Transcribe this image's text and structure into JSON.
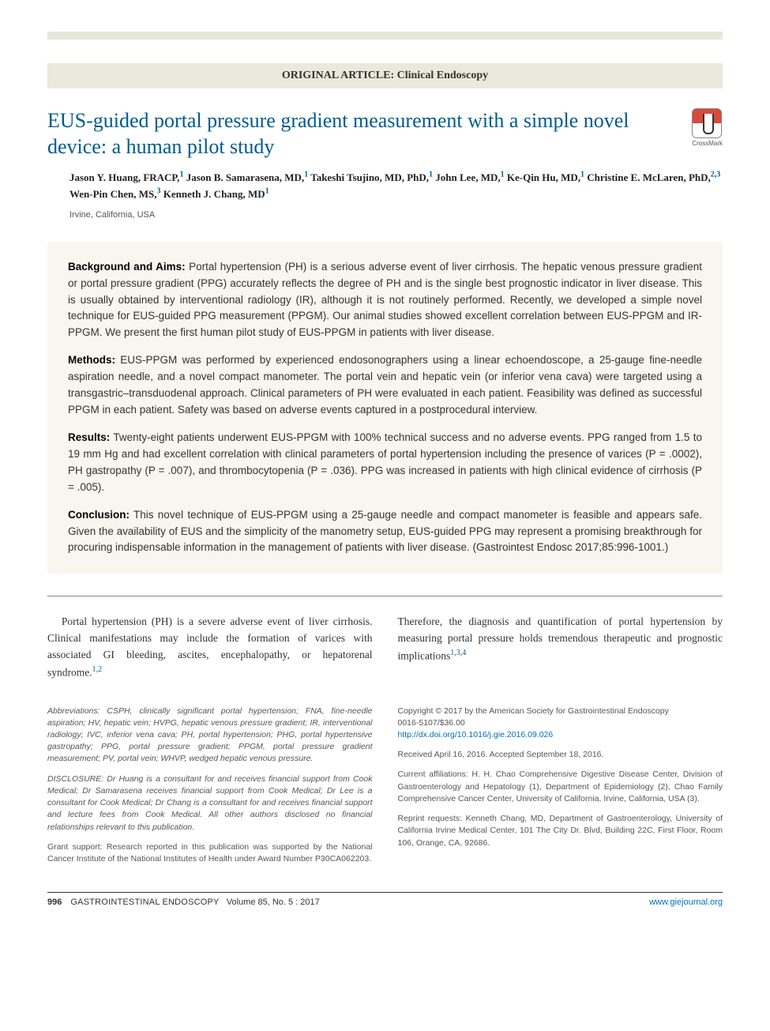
{
  "colors": {
    "accent": "#005b8e",
    "link": "#0071b8",
    "category_bg": "#ebe9dc",
    "abstract_bg": "#f7f6ef",
    "text": "#333333",
    "footnote_text": "#555555"
  },
  "header": {
    "category": "ORIGINAL ARTICLE: Clinical Endoscopy",
    "title": "EUS-guided portal pressure gradient measurement with a simple novel device: a human pilot study",
    "crossmark_label": "CrossMark"
  },
  "authors_html": "Jason Y. Huang, FRACP,<sup>1</sup> Jason B. Samarasena, MD,<sup>1</sup> Takeshi Tsujino, MD, PhD,<sup>1</sup> John Lee, MD,<sup>1</sup> Ke-Qin Hu, MD,<sup>1</sup> Christine E. McLaren, PhD,<sup>2,3</sup> Wen-Pin Chen, MS,<sup>3</sup> Kenneth J. Chang, MD<sup>1</sup>",
  "location": "Irvine, California, USA",
  "abstract": {
    "background": {
      "label": "Background and Aims:",
      "text": "Portal hypertension (PH) is a serious adverse event of liver cirrhosis. The hepatic venous pressure gradient or portal pressure gradient (PPG) accurately reflects the degree of PH and is the single best prognostic indicator in liver disease. This is usually obtained by interventional radiology (IR), although it is not routinely performed. Recently, we developed a simple novel technique for EUS-guided PPG measurement (PPGM). Our animal studies showed excellent correlation between EUS-PPGM and IR-PPGM. We present the first human pilot study of EUS-PPGM in patients with liver disease."
    },
    "methods": {
      "label": "Methods:",
      "text": "EUS-PPGM was performed by experienced endosonographers using a linear echoendoscope, a 25-gauge fine-needle aspiration needle, and a novel compact manometer. The portal vein and hepatic vein (or inferior vena cava) were targeted using a transgastric–transduodenal approach. Clinical parameters of PH were evaluated in each patient. Feasibility was defined as successful PPGM in each patient. Safety was based on adverse events captured in a postprocedural interview."
    },
    "results": {
      "label": "Results:",
      "text": "Twenty-eight patients underwent EUS-PPGM with 100% technical success and no adverse events. PPG ranged from 1.5 to 19 mm Hg and had excellent correlation with clinical parameters of portal hypertension including the presence of varices (P = .0002), PH gastropathy (P = .007), and thrombocytopenia (P = .036). PPG was increased in patients with high clinical evidence of cirrhosis (P = .005)."
    },
    "conclusion": {
      "label": "Conclusion:",
      "text": "This novel technique of EUS-PPGM using a 25-gauge needle and compact manometer is feasible and appears safe. Given the availability of EUS and the simplicity of the manometry setup, EUS-guided PPG may represent a promising breakthrough for procuring indispensable information in the management of patients with liver disease. (Gastrointest Endosc 2017;85:996-1001.)"
    }
  },
  "body": {
    "col1_p1": "Portal hypertension (PH) is a severe adverse event of liver cirrhosis. Clinical manifestations may include the formation of varices with associated GI bleeding, ascites, encephalopathy, or hepatorenal syndrome.",
    "col1_ref1": "1,2",
    "col2_p1": "Therefore, the diagnosis and quantification of portal hypertension by measuring portal pressure holds tremendous therapeutic and prognostic implications",
    "col2_ref1": "1,3,4"
  },
  "footnotes": {
    "abbrev": "Abbreviations: CSPH, clinically significant portal hypertension; FNA, fine-needle aspiration; HV, hepatic vein; HVPG, hepatic venous pressure gradient; IR, interventional radiology; IVC, inferior vena cava; PH, portal hypertension; PHG, portal hypertensive gastropathy; PPG, portal pressure gradient; PPGM, portal pressure gradient measurement; PV, portal vein; WHVP, wedged hepatic venous pressure.",
    "disclosure": "DISCLOSURE: Dr Huang is a consultant for and receives financial support from Cook Medical; Dr Samarasena receives financial support from Cook Medical; Dr Lee is a consultant for Cook Medical; Dr Chang is a consultant for and receives financial support and lecture fees from Cook Medical. All other authors disclosed no financial relationships relevant to this publication.",
    "grant": "Grant support: Research reported in this publication was supported by the National Cancer Institute of the National Institutes of Health under Award Number P30CA062203.",
    "copyright_l1": "Copyright © 2017 by the American Society for Gastrointestinal Endoscopy",
    "copyright_l2": "0016-5107/$36.00",
    "doi": "http://dx.doi.org/10.1016/j.gie.2016.09.026",
    "received": "Received April 16, 2016. Accepted September 18, 2016.",
    "affiliations": "Current affiliations: H. H. Chao Comprehensive Digestive Disease Center, Division of Gastroenterology and Hepatology (1), Department of Epidemiology (2), Chao Family Comprehensive Cancer Center, University of California, Irvine, California, USA (3).",
    "reprint": "Reprint requests: Kenneth Chang, MD, Department of Gastroenterology, University of California Irvine Medical Center, 101 The City Dr. Blvd, Building 22C, First Floor, Room 106, Orange, CA, 92686."
  },
  "footer": {
    "page_num": "996",
    "journal": "GASTROINTESTINAL ENDOSCOPY",
    "issue": "Volume 85, No. 5 : 2017",
    "url": "www.giejournal.org"
  }
}
